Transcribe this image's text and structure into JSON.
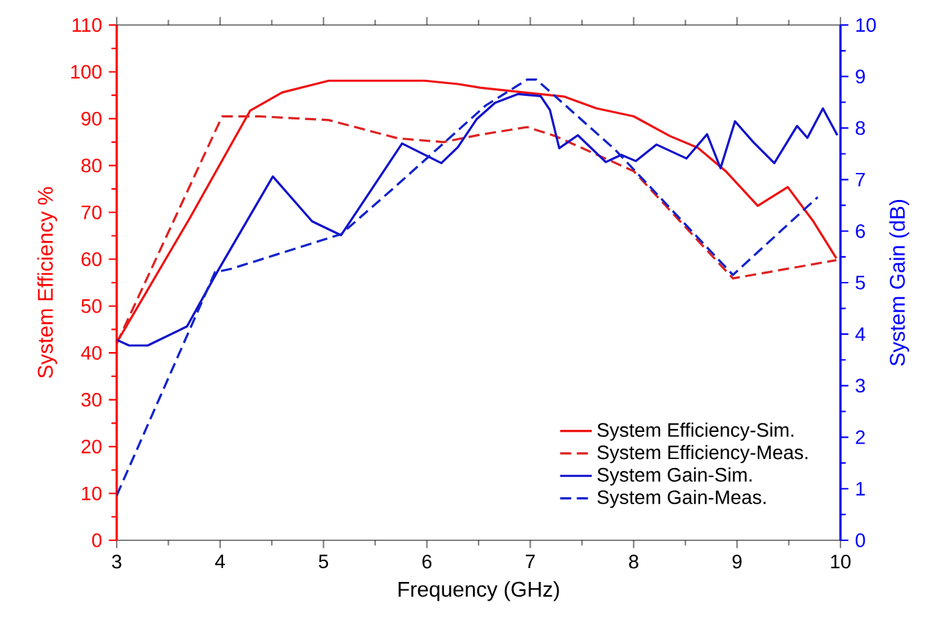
{
  "chart_data": {
    "type": "line",
    "xlabel": "Frequency (GHz)",
    "ylabel": "System Efficiency %",
    "y2label": "System Gain (dB)",
    "xlim": [
      3,
      10
    ],
    "xticks": [
      3,
      4,
      5,
      6,
      7,
      8,
      9,
      10
    ],
    "ylim": [
      0,
      110
    ],
    "yticks": [
      0,
      10,
      20,
      30,
      40,
      50,
      60,
      70,
      80,
      90,
      100,
      110
    ],
    "y2lim": [
      0,
      10
    ],
    "y2ticks": [
      0,
      1,
      2,
      3,
      4,
      5,
      6,
      7,
      8,
      9,
      10
    ],
    "legend": "bottom right",
    "marker": "none",
    "series": [
      {
        "name": "System Efficiency-Sim.",
        "color": "#ee1111",
        "line_style": "solid",
        "x": [
          3,
          3.71,
          4.29,
          4.6,
          5.05,
          5.98,
          6.3,
          6.52,
          7.33,
          7.64,
          8.0,
          8.35,
          8.62,
          8.89,
          9.2,
          9.49,
          9.74,
          9.96
        ],
        "values": [
          42.2,
          68.9,
          91.7,
          95.6,
          98.1,
          98.1,
          97.4,
          96.6,
          94.7,
          92.2,
          90.5,
          86.3,
          83.8,
          78.8,
          71.4,
          75.4,
          68,
          60.2
        ]
      },
      {
        "name": "System Efficiency-Meas.",
        "color": "#dd2222",
        "line_style": "dashed",
        "x": [
          3,
          4.02,
          4.38,
          5.05,
          5.72,
          6.16,
          6.52,
          6.97,
          7.24,
          8.0,
          8.96,
          9.96
        ],
        "values": [
          42,
          90.5,
          90.5,
          89.7,
          85.8,
          85,
          86.6,
          88.2,
          86.3,
          78.8,
          55.9,
          59.8
        ]
      },
      {
        "name": "System Gain-Sim.",
        "color": "#1111cc",
        "line_style": "solid",
        "axis": "y2",
        "x": [
          3,
          3.12,
          3.3,
          3.68,
          3.97,
          4.51,
          4.89,
          5.17,
          5.76,
          6.14,
          6.3,
          6.48,
          6.66,
          6.88,
          7.1,
          7.19,
          7.28,
          7.46,
          7.73,
          7.88,
          8.02,
          8.22,
          8.51,
          8.71,
          8.84,
          8.98,
          9.16,
          9.36,
          9.58,
          9.68,
          9.83,
          9.97
        ],
        "values": [
          3.89,
          3.78,
          3.78,
          4.15,
          5.2,
          7.06,
          6.19,
          5.92,
          7.7,
          7.32,
          7.63,
          8.17,
          8.49,
          8.66,
          8.62,
          8.35,
          7.61,
          7.86,
          7.34,
          7.48,
          7.36,
          7.68,
          7.41,
          7.88,
          7.22,
          8.13,
          7.72,
          7.32,
          8.04,
          7.81,
          8.38,
          7.86
        ]
      },
      {
        "name": "System Gain-Meas.",
        "color": "#1122cc",
        "line_style": "dashed",
        "axis": "y2",
        "x": [
          3,
          3.95,
          4.11,
          5.17,
          5.67,
          6.57,
          6.97,
          7.06,
          7.82,
          8.96,
          9.78
        ],
        "values": [
          0.87,
          5.2,
          5.27,
          5.94,
          6.82,
          8.44,
          8.94,
          8.94,
          7.58,
          5.15,
          6.66
        ]
      }
    ]
  }
}
